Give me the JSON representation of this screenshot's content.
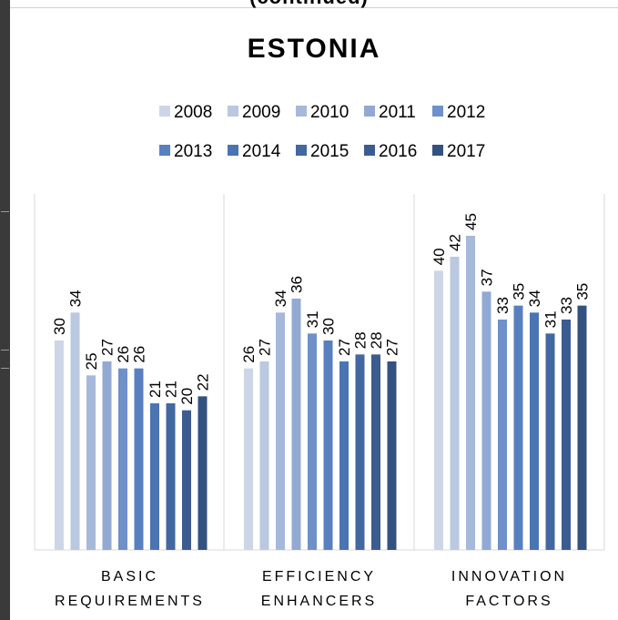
{
  "header": {
    "cut_off_text": "(continued)"
  },
  "chart_data": {
    "type": "bar",
    "title": "ESTONIA",
    "categories": [
      "BASIC REQUIREMENTS",
      "EFFICIENCY ENHANCERS",
      "INNOVATION FACTORS"
    ],
    "category_lines": [
      [
        "BASIC",
        "REQUIREMENTS"
      ],
      [
        "EFFICIENCY",
        "ENHANCERS"
      ],
      [
        "INNOVATION",
        "FACTORS"
      ]
    ],
    "ylim": [
      0,
      51
    ],
    "legend_position": "top",
    "grid": false,
    "data_labels": true,
    "series": [
      {
        "name": "2008",
        "color": "#cdd6e6",
        "values": [
          30,
          26,
          40
        ]
      },
      {
        "name": "2009",
        "color": "#bac8e0",
        "values": [
          34,
          27,
          42
        ]
      },
      {
        "name": "2010",
        "color": "#a7b9da",
        "values": [
          25,
          34,
          45
        ]
      },
      {
        "name": "2011",
        "color": "#92a9d3",
        "values": [
          27,
          36,
          37
        ]
      },
      {
        "name": "2012",
        "color": "#6f90c8",
        "values": [
          26,
          31,
          33
        ]
      },
      {
        "name": "2013",
        "color": "#5880c0",
        "values": [
          26,
          30,
          35
        ]
      },
      {
        "name": "2014",
        "color": "#4b74b3",
        "values": [
          21,
          27,
          34
        ]
      },
      {
        "name": "2015",
        "color": "#4367a0",
        "values": [
          21,
          28,
          31
        ]
      },
      {
        "name": "2016",
        "color": "#3c5c90",
        "values": [
          20,
          28,
          33
        ]
      },
      {
        "name": "2017",
        "color": "#34527f",
        "values": [
          22,
          27,
          35
        ]
      }
    ]
  }
}
